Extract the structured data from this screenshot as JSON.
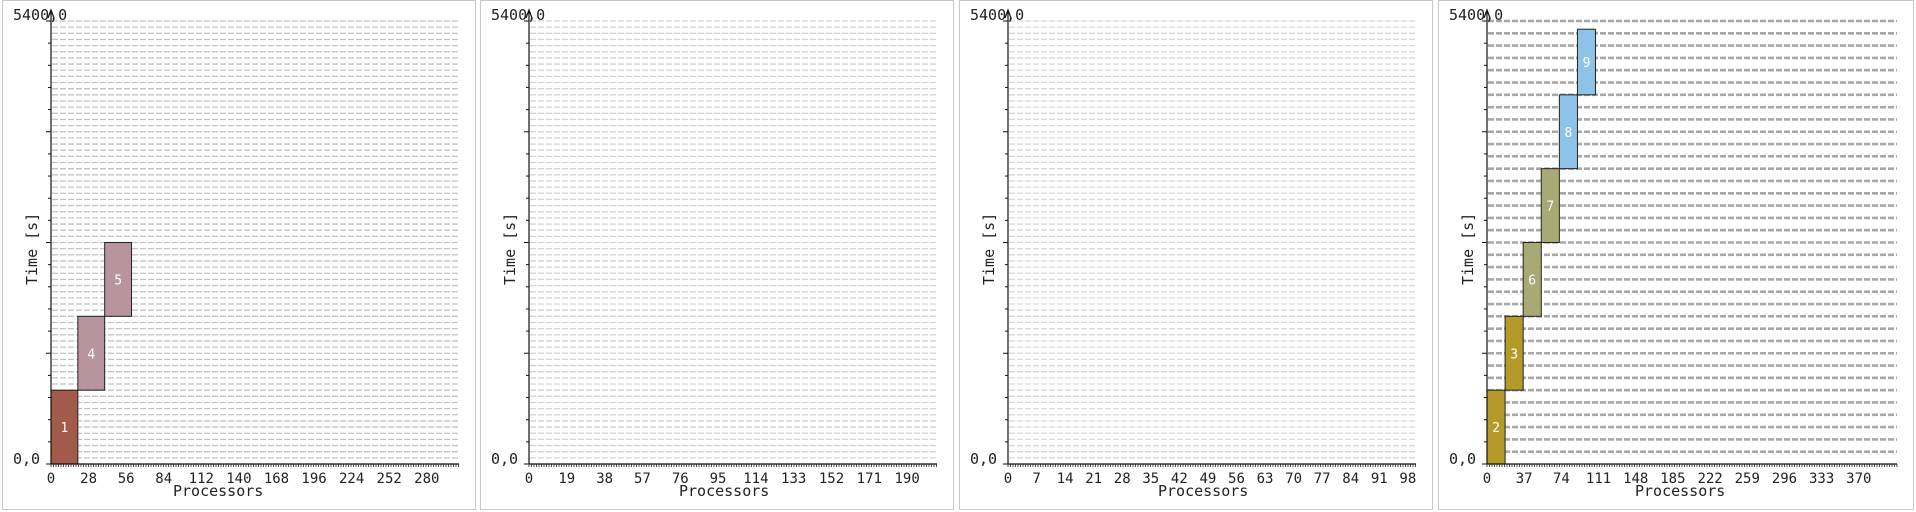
{
  "chart_data": [
    {
      "type": "gantt",
      "ylabel": "Time [s]",
      "xlabel": "Processors",
      "y_top_label": "5400,0",
      "y_bottom_label": "0,0",
      "ylim": [
        0,
        5400
      ],
      "xlim": [
        0,
        304
      ],
      "x_ticks": [
        0,
        28,
        56,
        84,
        112,
        140,
        168,
        196,
        224,
        252,
        280
      ],
      "grid_lines": 72,
      "grid_color": "#c4c4c4",
      "jobs": [
        {
          "id": "1",
          "p_start": 0,
          "p_end": 20,
          "t_start": 0,
          "t_end": 900,
          "color": "#a25a4a"
        },
        {
          "id": "4",
          "p_start": 20,
          "p_end": 40,
          "t_start": 900,
          "t_end": 1800,
          "color": "#b8949e"
        },
        {
          "id": "5",
          "p_start": 40,
          "p_end": 60,
          "t_start": 1800,
          "t_end": 2700,
          "color": "#b8949e"
        }
      ]
    },
    {
      "type": "gantt",
      "ylabel": "Time [s]",
      "xlabel": "Processors",
      "y_top_label": "5400,0",
      "y_bottom_label": "0,0",
      "ylim": [
        0,
        5400
      ],
      "xlim": [
        0,
        205
      ],
      "x_ticks": [
        0,
        19,
        38,
        57,
        76,
        95,
        114,
        133,
        152,
        171,
        190
      ],
      "grid_lines": 72,
      "grid_color": "#d4d4d4",
      "jobs": []
    },
    {
      "type": "gantt",
      "ylabel": "Time [s]",
      "xlabel": "Processors",
      "y_top_label": "5400,0",
      "y_bottom_label": "0,0",
      "ylim": [
        0,
        5400
      ],
      "xlim": [
        0,
        100
      ],
      "x_ticks": [
        0,
        7,
        14,
        21,
        28,
        35,
        42,
        49,
        56,
        63,
        70,
        77,
        84,
        91,
        98
      ],
      "grid_lines": 72,
      "grid_color": "#d8d8d8",
      "jobs": []
    },
    {
      "type": "gantt",
      "ylabel": "Time [s]",
      "xlabel": "Processors",
      "y_top_label": "5400,0",
      "y_bottom_label": "0,0",
      "ylim": [
        0,
        5400
      ],
      "xlim": [
        0,
        408
      ],
      "x_ticks": [
        0,
        37,
        74,
        111,
        148,
        185,
        222,
        259,
        296,
        333,
        370
      ],
      "grid_lines": 36,
      "grid_color": "#a8a8a8",
      "jobs": [
        {
          "id": "2",
          "p_start": 0,
          "p_end": 18,
          "t_start": 0,
          "t_end": 900,
          "color": "#b59a2a"
        },
        {
          "id": "3",
          "p_start": 18,
          "p_end": 36,
          "t_start": 900,
          "t_end": 1800,
          "color": "#b59a2a"
        },
        {
          "id": "6",
          "p_start": 36,
          "p_end": 54,
          "t_start": 1800,
          "t_end": 2700,
          "color": "#a7aa74"
        },
        {
          "id": "7",
          "p_start": 54,
          "p_end": 72,
          "t_start": 2700,
          "t_end": 3600,
          "color": "#a7aa74"
        },
        {
          "id": "8",
          "p_start": 72,
          "p_end": 90,
          "t_start": 3600,
          "t_end": 4500,
          "color": "#8ec3e8"
        },
        {
          "id": "9",
          "p_start": 90,
          "p_end": 108,
          "t_start": 4500,
          "t_end": 5300,
          "color": "#8ec3e8"
        }
      ]
    }
  ]
}
